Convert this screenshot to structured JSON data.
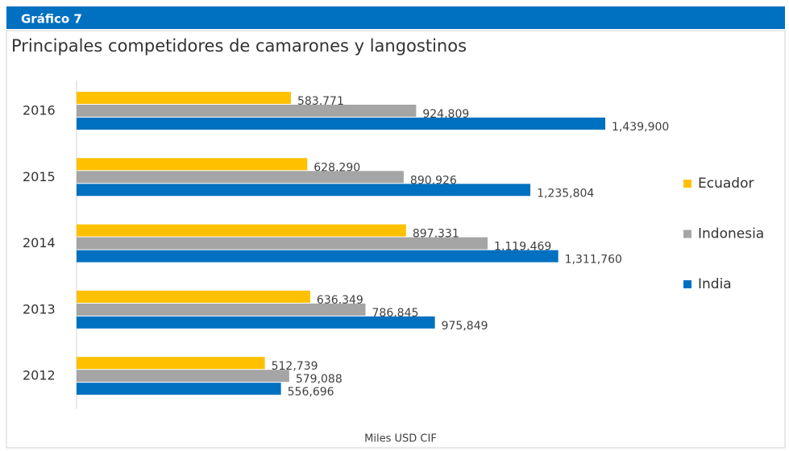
{
  "chart_data": {
    "type": "hbar",
    "header": "Gráfico 7",
    "title": "Principales competidores de camarones y langostinos",
    "x_label": "Miles USD CIF",
    "categories": [
      "2016",
      "2015",
      "2014",
      "2013",
      "2012"
    ],
    "xlim": [
      0,
      1600000
    ],
    "legend": "right",
    "series": [
      {
        "name": "Ecuador",
        "color": "#ffc000",
        "values": [
          583771,
          628290,
          897331,
          636349,
          512739
        ],
        "value_labels": [
          "583,771",
          "628,290",
          "897,331",
          "636,349",
          "512,739"
        ]
      },
      {
        "name": "Indonesia",
        "color": "#a5a5a5",
        "values": [
          924809,
          890926,
          1119469,
          786845,
          579088
        ],
        "value_labels": [
          "924,809",
          "890,926",
          "1,119,469",
          "786,845",
          "579,088"
        ]
      },
      {
        "name": "India",
        "color": "#0070c0",
        "values": [
          1439900,
          1235804,
          1311760,
          975849,
          556696
        ],
        "value_labels": [
          "1,439,900",
          "1,235,804",
          "1,311,760",
          "975,849",
          "556,696"
        ]
      }
    ]
  }
}
